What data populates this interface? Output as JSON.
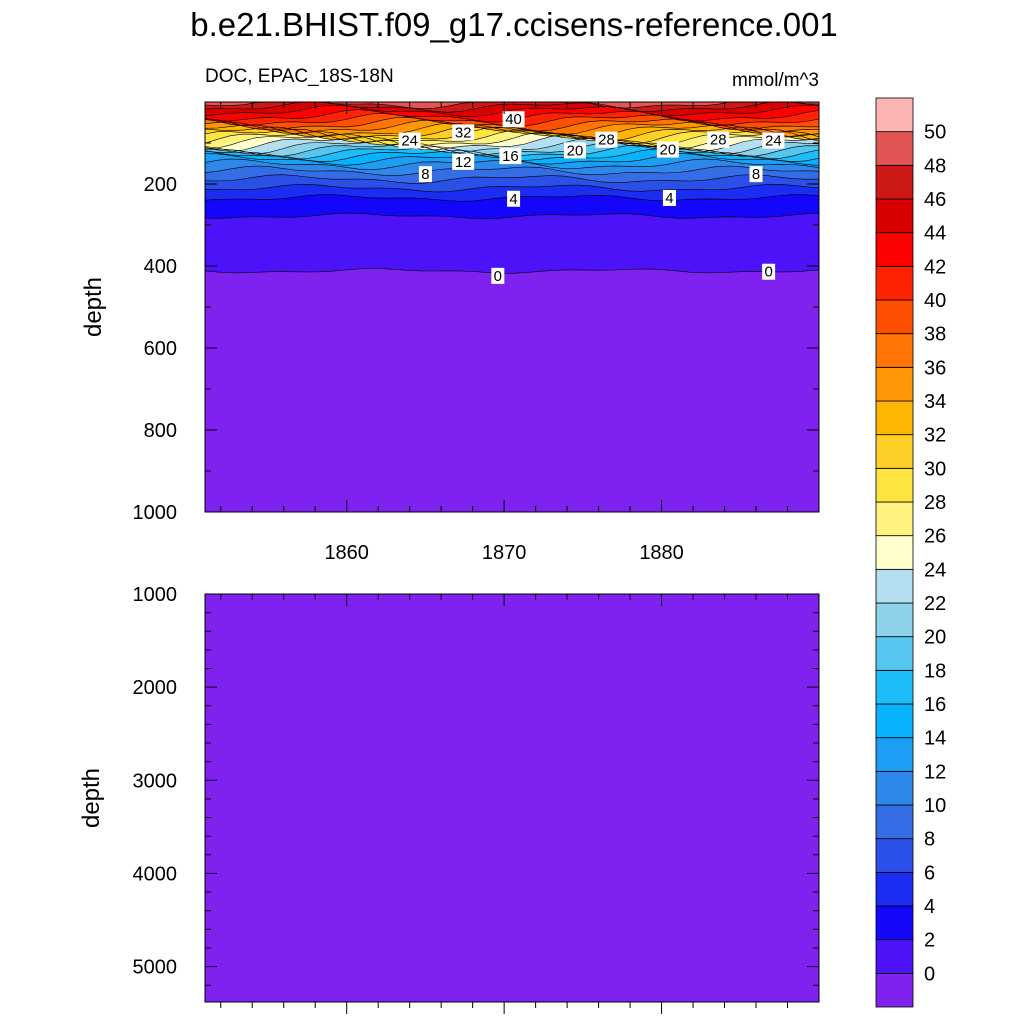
{
  "chart_data": {
    "type": "contour",
    "title": "b.e21.BHIST.f09_g17.ccisens-reference.001",
    "colorbar": {
      "levels": [
        0,
        2,
        4,
        6,
        8,
        10,
        12,
        14,
        16,
        18,
        20,
        22,
        24,
        26,
        28,
        30,
        32,
        34,
        36,
        38,
        40,
        42,
        44,
        46,
        48,
        50
      ],
      "colors": [
        "#7f22ef",
        "#4c13f9",
        "#1405fb",
        "#1b2df2",
        "#2b50e8",
        "#356de6",
        "#2d88ea",
        "#1c9ef5",
        "#08b2fd",
        "#1bbef9",
        "#55c6ef",
        "#8ed2ea",
        "#b4dff1",
        "#ffffcc",
        "#fff27e",
        "#fee53f",
        "#fecf26",
        "#feb504",
        "#fe9605",
        "#fe7405",
        "#fe5005",
        "#fe2403",
        "#fd0000",
        "#da0000",
        "#cd1818",
        "#e15555",
        "#fcb4b4"
      ]
    },
    "panels": [
      {
        "id": "upper",
        "left_label": "DOC, EPAC_18S-18N",
        "right_label": "mmol/m^3",
        "ylabel": "depth",
        "ylim": [
          1000,
          0
        ],
        "yticks": [
          200,
          400,
          600,
          800,
          1000
        ],
        "xlim": [
          1851,
          1890
        ],
        "xticks": [
          1860,
          1870,
          1880
        ],
        "contour_labels": [
          {
            "value": "40",
            "x": 1870.6,
            "depth": 42
          },
          {
            "value": "32",
            "x": 1867.4,
            "depth": 74
          },
          {
            "value": "24",
            "x": 1864.0,
            "depth": 94
          },
          {
            "value": "28",
            "x": 1876.5,
            "depth": 92
          },
          {
            "value": "28",
            "x": 1883.6,
            "depth": 92
          },
          {
            "value": "24",
            "x": 1887.1,
            "depth": 94
          },
          {
            "value": "20",
            "x": 1874.5,
            "depth": 118
          },
          {
            "value": "20",
            "x": 1880.4,
            "depth": 116
          },
          {
            "value": "16",
            "x": 1870.4,
            "depth": 132
          },
          {
            "value": "12",
            "x": 1867.4,
            "depth": 146
          },
          {
            "value": "8",
            "x": 1865.0,
            "depth": 176
          },
          {
            "value": "8",
            "x": 1886.0,
            "depth": 176
          },
          {
            "value": "4",
            "x": 1870.6,
            "depth": 236
          },
          {
            "value": "4",
            "x": 1880.5,
            "depth": 234
          },
          {
            "value": "0",
            "x": 1869.6,
            "depth": 424
          },
          {
            "value": "0",
            "x": 1886.8,
            "depth": 414
          }
        ]
      },
      {
        "id": "lower",
        "ylabel": "depth",
        "ylim": [
          5380,
          1000
        ],
        "yticks": [
          1000,
          2000,
          3000,
          4000,
          5000
        ],
        "xlim": [
          1851,
          1890
        ],
        "fill_level": 0
      }
    ]
  }
}
